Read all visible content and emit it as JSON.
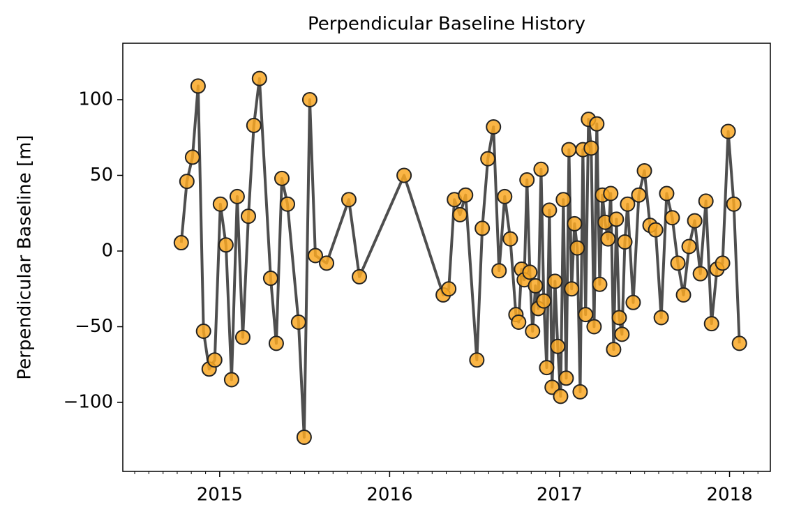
{
  "chart_data": {
    "type": "line",
    "title": "Perpendicular Baseline History",
    "ylabel": "Perpendicular Baseline [m]",
    "x": [
      2014.774,
      2014.807,
      2014.84,
      2014.873,
      2014.905,
      2014.938,
      2014.971,
      2015.004,
      2015.037,
      2015.07,
      2015.103,
      2015.136,
      2015.169,
      2015.201,
      2015.234,
      2015.3,
      2015.333,
      2015.366,
      2015.399,
      2015.464,
      2015.497,
      2015.53,
      2015.563,
      2015.629,
      2015.76,
      2015.822,
      2016.085,
      2016.315,
      2016.348,
      2016.381,
      2016.414,
      2016.447,
      2016.513,
      2016.545,
      2016.578,
      2016.611,
      2016.644,
      2016.677,
      2016.71,
      2016.743,
      2016.759,
      2016.776,
      2016.792,
      2016.808,
      2016.825,
      2016.841,
      2016.858,
      2016.874,
      2016.891,
      2016.907,
      2016.924,
      2016.94,
      2016.956,
      2016.973,
      2016.989,
      2017.006,
      2017.022,
      2017.039,
      2017.055,
      2017.071,
      2017.088,
      2017.104,
      2017.121,
      2017.137,
      2017.153,
      2017.17,
      2017.186,
      2017.203,
      2017.219,
      2017.236,
      2017.252,
      2017.268,
      2017.285,
      2017.301,
      2017.318,
      2017.334,
      2017.351,
      2017.367,
      2017.384,
      2017.4,
      2017.433,
      2017.466,
      2017.499,
      2017.532,
      2017.565,
      2017.598,
      2017.63,
      2017.663,
      2017.696,
      2017.729,
      2017.762,
      2017.795,
      2017.828,
      2017.861,
      2017.894,
      2017.926,
      2017.959,
      2017.992,
      2018.025,
      2018.058
    ],
    "values": [
      5.5,
      46,
      62,
      109,
      -53,
      -78,
      -72,
      31,
      4,
      -85,
      36,
      -57,
      23,
      83,
      114,
      -18,
      -61,
      48,
      31,
      -47,
      -123,
      100,
      -3,
      -8,
      34,
      -17,
      50,
      -29,
      -25,
      34,
      24,
      37,
      -72,
      15,
      61,
      82,
      -13,
      36,
      8,
      -42,
      -47,
      -12,
      -19,
      47,
      -14,
      -53,
      -23,
      -38,
      54,
      -33,
      -77,
      27,
      -90,
      -20,
      -63,
      -96,
      34,
      -84,
      67,
      -25,
      18,
      2,
      -93,
      67,
      -42,
      87,
      68,
      -50,
      84,
      -22,
      37,
      19,
      8,
      38,
      -65,
      21,
      -44,
      -55,
      6,
      31,
      -34,
      37,
      53,
      17,
      14,
      -44,
      38,
      22,
      -8,
      -29,
      3,
      20,
      -15,
      33,
      -48,
      -12,
      -8,
      79,
      31,
      -61
    ],
    "line_color": "#444444",
    "marker_color": "#f9a825",
    "xlim": [
      2014.43,
      2018.24
    ],
    "xticks": [
      2015,
      2016,
      2017,
      2018
    ],
    "xminorticks": [
      2014.5,
      2014.583,
      2014.667,
      2014.75,
      2014.833,
      2014.917,
      2015.083,
      2015.167,
      2015.25,
      2015.333,
      2015.417,
      2015.5,
      2015.583,
      2015.667,
      2015.75,
      2015.833,
      2015.917,
      2016.083,
      2016.167,
      2016.25,
      2016.333,
      2016.417,
      2016.5,
      2016.583,
      2016.667,
      2016.75,
      2016.833,
      2016.917,
      2017.083,
      2017.167,
      2017.25,
      2017.333,
      2017.417,
      2017.5,
      2017.583,
      2017.667,
      2017.75,
      2017.833,
      2017.917,
      2018.083,
      2018.167
    ],
    "ylim": [
      -145.6,
      137.3
    ],
    "yticks": [
      {
        "value": -100,
        "label": "−100"
      },
      {
        "value": -50,
        "label": "−50"
      },
      0,
      50,
      100
    ]
  }
}
